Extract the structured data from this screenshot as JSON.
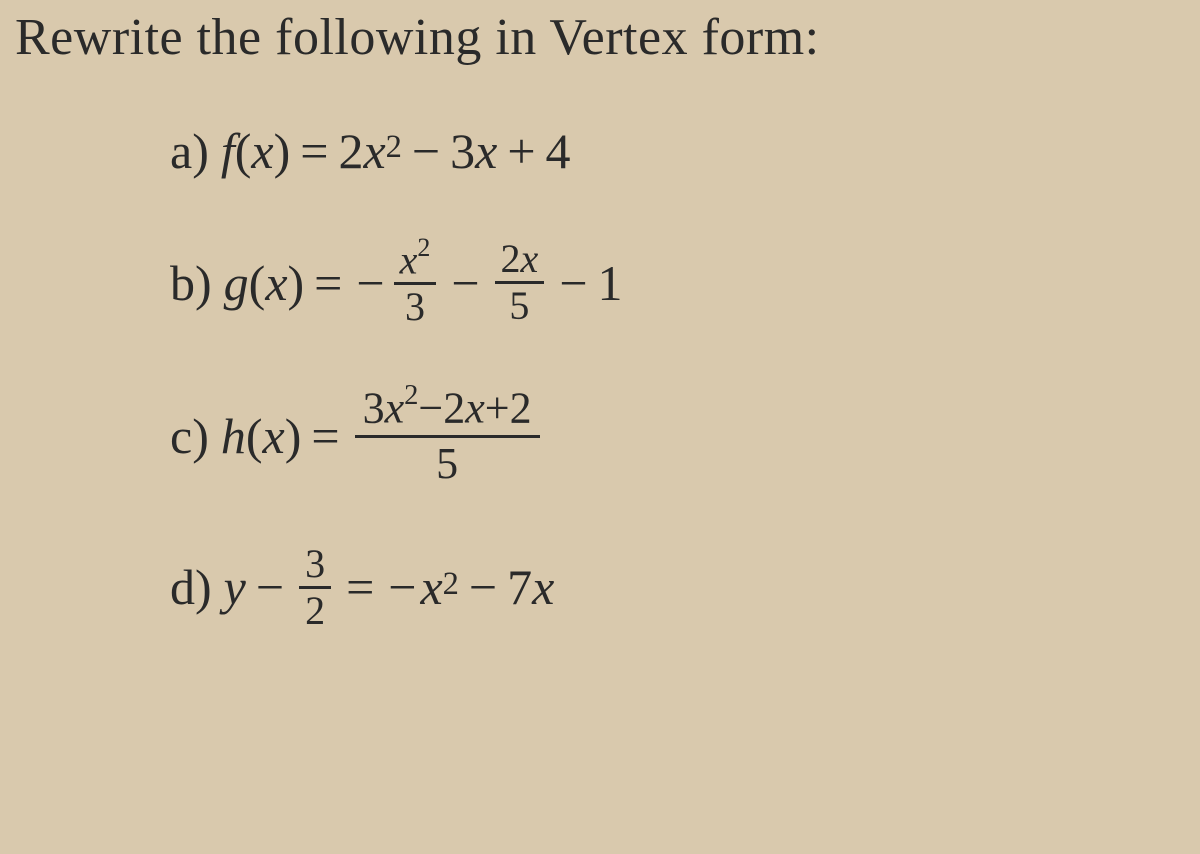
{
  "title": "Rewrite the following in Vertex form:",
  "problems": {
    "a": {
      "label": "a)",
      "lhs_func": "f",
      "lhs_arg": "x",
      "coef_a": "2",
      "var": "x",
      "exp": "2",
      "op1": "−",
      "coef_b": "3",
      "op2": "+",
      "const": "4"
    },
    "b": {
      "label": "b)",
      "lhs_func": "g",
      "lhs_arg": "x",
      "sign1": "−",
      "frac1_num_var": "x",
      "frac1_num_exp": "2",
      "frac1_den": "3",
      "op1": "−",
      "frac2_num_coef": "2",
      "frac2_num_var": "x",
      "frac2_den": "5",
      "op2": "−",
      "const": "1"
    },
    "c": {
      "label": "c)",
      "lhs_func": "h",
      "lhs_arg": "x",
      "num_coef_a": "3",
      "num_var1": "x",
      "num_exp": "2",
      "num_coef_b": "2",
      "num_var2": "x",
      "num_const": "2",
      "den": "5"
    },
    "d": {
      "label": "d)",
      "lhs_var": "y",
      "lhs_op": "−",
      "lhs_frac_num": "3",
      "lhs_frac_den": "2",
      "rhs_sign": "−",
      "rhs_var1": "x",
      "rhs_exp": "2",
      "rhs_op": "−",
      "rhs_coef": "7",
      "rhs_var2": "x"
    }
  },
  "colors": {
    "background": "#d9c9ad",
    "text": "#2a2a2a"
  },
  "typography": {
    "font_family": "Times New Roman",
    "title_size": 52,
    "equation_size": 50
  }
}
